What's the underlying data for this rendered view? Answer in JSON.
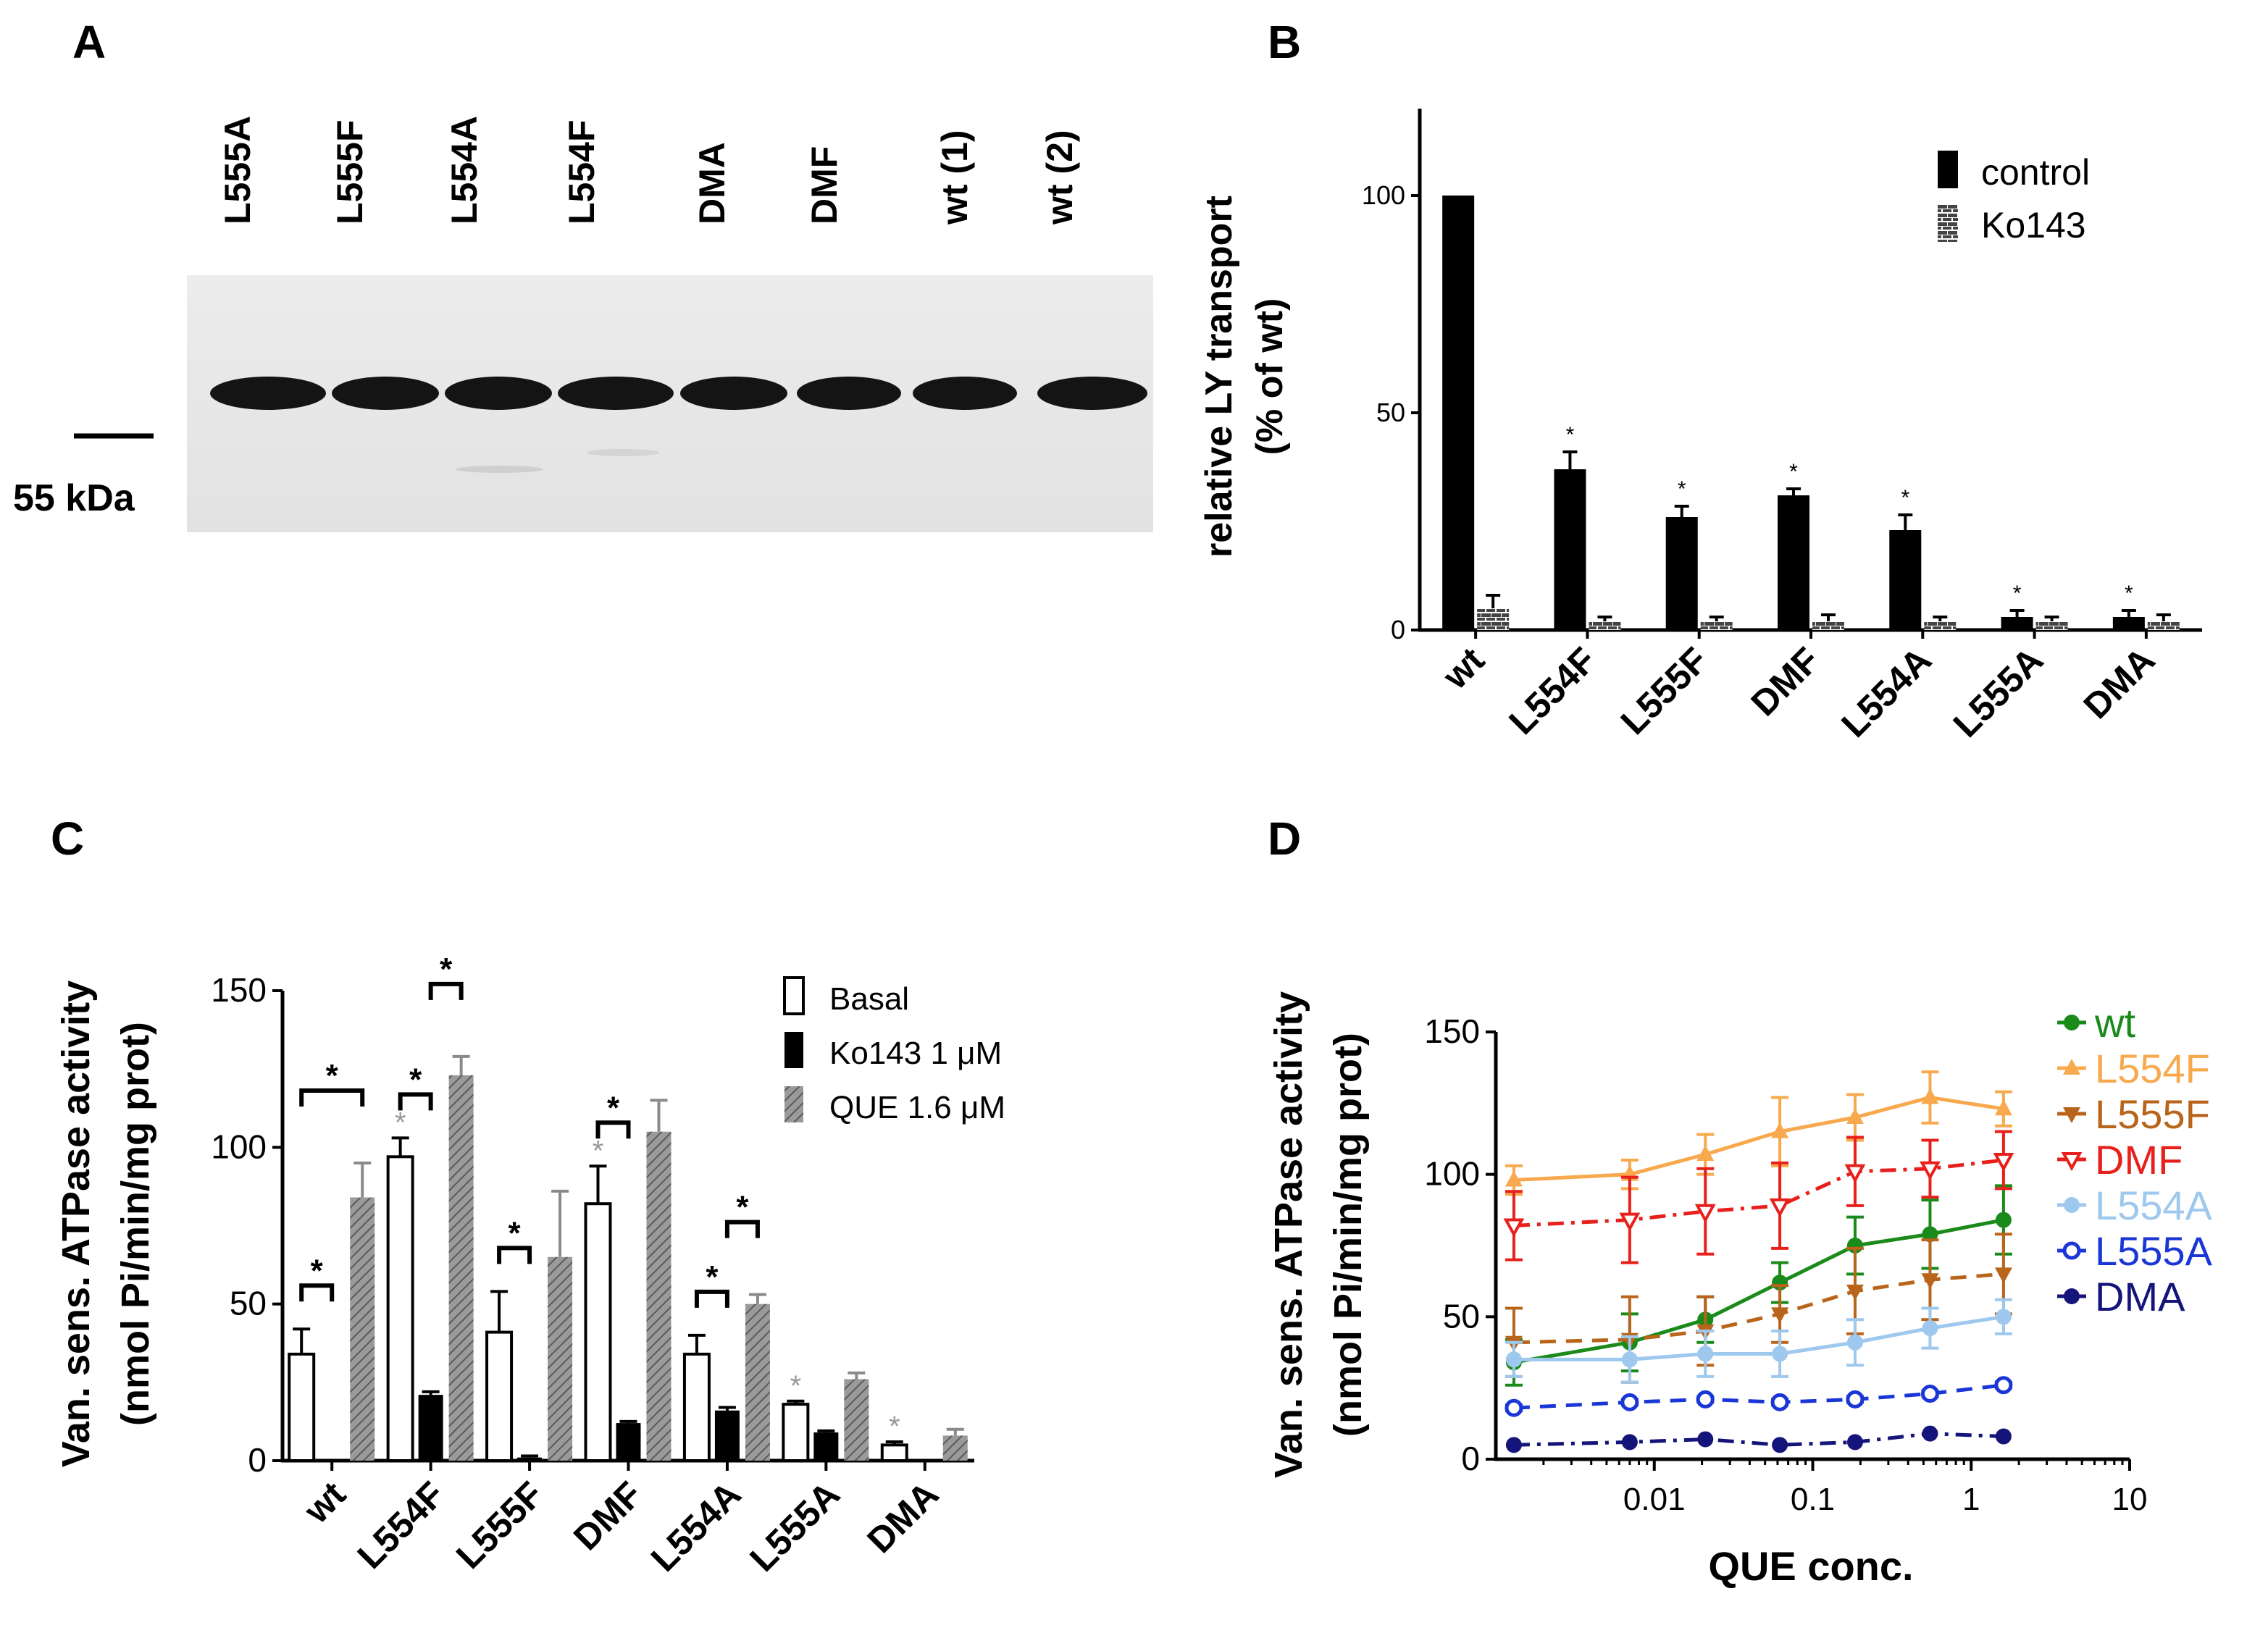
{
  "panel_labels": [
    "A",
    "B",
    "C",
    "D"
  ],
  "chart_data": [
    {
      "panel": "A",
      "type": "other",
      "description_kind": "western blot",
      "lanes": [
        "L555A",
        "L555F",
        "L554A",
        "L554F",
        "DMA",
        "DMF",
        "wt (1)",
        "wt (2)"
      ],
      "marker_label": "55 kDa"
    },
    {
      "panel": "B",
      "type": "bar",
      "categories": [
        "wt",
        "L554F",
        "L555F",
        "DMF",
        "L554A",
        "L555A",
        "DMA"
      ],
      "ylabel_lines": [
        "relative LY transport",
        "(% of wt)"
      ],
      "ylim": [
        0,
        120
      ],
      "yticks": [
        0,
        50,
        100
      ],
      "legend_position": "top-right",
      "series": [
        {
          "name": "control",
          "values": [
            100,
            37,
            26,
            31,
            23,
            3,
            3
          ],
          "errors": [
            0,
            4,
            2.5,
            1.5,
            3.5,
            1.5,
            1.5
          ],
          "color": "#000000"
        },
        {
          "name": "Ko143",
          "values": [
            5,
            2,
            2,
            2,
            2,
            2,
            2
          ],
          "errors": [
            3,
            1,
            1,
            1.5,
            1,
            1,
            1.5
          ],
          "color": "#333333"
        }
      ],
      "significance": [
        "",
        "*",
        "*",
        "*",
        "*",
        "*",
        "*"
      ]
    },
    {
      "panel": "C",
      "type": "bar",
      "categories": [
        "wt",
        "L554F",
        "L555F",
        "DMF",
        "L554A",
        "L555A",
        "DMA"
      ],
      "ylabel_lines": [
        "Van. sens. ATPase activity",
        "(nmol Pi/min/mg prot)"
      ],
      "ylim": [
        0,
        150
      ],
      "yticks": [
        0,
        50,
        100,
        150
      ],
      "legend_position": "top-right",
      "series": [
        {
          "name": "Basal",
          "values": [
            34,
            97,
            41,
            82,
            34,
            18,
            5
          ],
          "errors": [
            8,
            6,
            13,
            12,
            6,
            1,
            1
          ],
          "color": "#ffffff"
        },
        {
          "name": "Ko143 1 μM",
          "values": [
            0,
            21,
            1,
            12,
            16,
            9,
            0
          ],
          "errors": [
            0,
            1,
            0.5,
            0.5,
            1,
            0.5,
            0
          ],
          "color": "#000000"
        },
        {
          "name": "QUE 1.6 μM",
          "values": [
            84,
            123,
            65,
            105,
            50,
            26,
            8
          ],
          "errors": [
            11,
            6,
            21,
            10,
            3,
            2,
            2
          ],
          "color": "#999999"
        }
      ],
      "basal_grey_stars": [
        false,
        true,
        false,
        true,
        false,
        true,
        true
      ],
      "brackets": [
        {
          "category": 0,
          "pair": "basal-ko143",
          "star": "*"
        },
        {
          "category": 0,
          "pair": "basal-que",
          "star": "*"
        },
        {
          "category": 1,
          "pair": "basal-ko143",
          "star": "*"
        },
        {
          "category": 1,
          "pair": "ko143-que",
          "star": "*"
        },
        {
          "category": 2,
          "pair": "basal-ko143",
          "star": "*"
        },
        {
          "category": 3,
          "pair": "basal-ko143",
          "star": "*"
        },
        {
          "category": 4,
          "pair": "basal-ko143",
          "star": "*"
        },
        {
          "category": 4,
          "pair": "ko143-que",
          "star": "*"
        }
      ]
    },
    {
      "panel": "D",
      "type": "line",
      "xscale": "log",
      "xlabel": "QUE conc.",
      "ylabel_lines": [
        "Van. sens. ATPase activity",
        "(nmol Pi/min/mg prot)"
      ],
      "xlim": [
        0.001,
        10
      ],
      "ylim": [
        0,
        150
      ],
      "xticks": [
        0.01,
        0.1,
        1,
        10
      ],
      "xtick_labels": [
        "0.01",
        "0.1",
        "1",
        "10"
      ],
      "yticks": [
        0,
        50,
        100,
        150
      ],
      "x": [
        0.0013,
        0.007,
        0.021,
        0.062,
        0.185,
        0.55,
        1.6
      ],
      "legend_position": "right",
      "series": [
        {
          "name": "wt",
          "color": "#1a8a1a",
          "marker": "circle-filled",
          "dash": "solid",
          "values": [
            34,
            41,
            49,
            62,
            75,
            79,
            84
          ],
          "errors": [
            8,
            10,
            8,
            7,
            10,
            12,
            12
          ]
        },
        {
          "name": "L554F",
          "color": "#f8a94e",
          "marker": "triangle-up",
          "dash": "solid",
          "values": [
            98,
            100,
            107,
            115,
            120,
            127,
            123
          ],
          "errors": [
            5,
            5,
            7,
            12,
            8,
            9,
            6
          ]
        },
        {
          "name": "L555F",
          "color": "#b8651b",
          "marker": "triangle-down",
          "dash": "dashed",
          "values": [
            41,
            42,
            45,
            51,
            59,
            63,
            65
          ],
          "errors": [
            12,
            15,
            12,
            10,
            15,
            14,
            14
          ]
        },
        {
          "name": "DMF",
          "color": "#e8201c",
          "marker": "triangle-down-open",
          "dash": "dashdot",
          "values": [
            82,
            84,
            87,
            89,
            101,
            102,
            105
          ],
          "errors": [
            12,
            15,
            15,
            15,
            12,
            10,
            10
          ]
        },
        {
          "name": "L554A",
          "color": "#9ec8ee",
          "marker": "circle-filled",
          "dash": "solid",
          "values": [
            35,
            35,
            37,
            37,
            41,
            46,
            50
          ],
          "errors": [
            6,
            8,
            8,
            8,
            8,
            7,
            6
          ]
        },
        {
          "name": "L555A",
          "color": "#1a36d6",
          "marker": "circle-open",
          "dash": "dashed",
          "values": [
            18,
            20,
            21,
            20,
            21,
            23,
            26
          ],
          "errors": [
            1,
            1,
            1,
            1,
            1,
            1,
            1
          ]
        },
        {
          "name": "DMA",
          "color": "#14147a",
          "marker": "circle-filled",
          "dash": "dashdot",
          "values": [
            5,
            6,
            7,
            5,
            6,
            9,
            8
          ],
          "errors": [
            0.5,
            0.5,
            0.5,
            0.5,
            0.5,
            0.5,
            0.5
          ]
        }
      ]
    }
  ]
}
